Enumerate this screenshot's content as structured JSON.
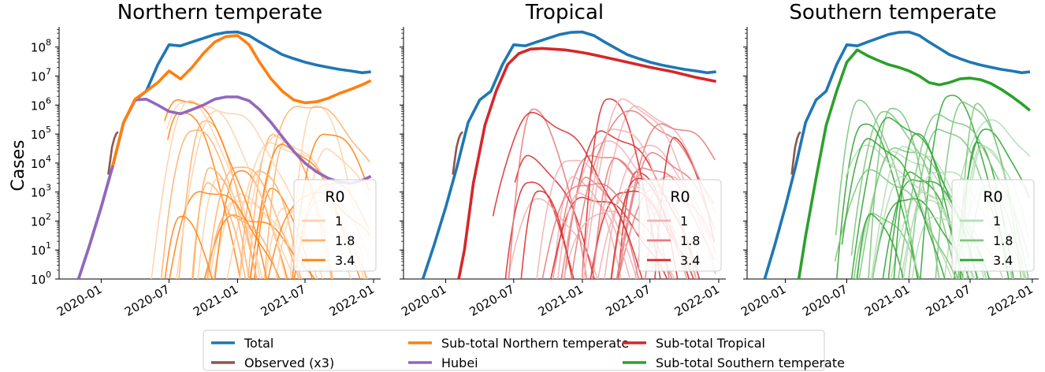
{
  "figure": {
    "ylabel": "Cases",
    "xticks": [
      "2020-01",
      "2020-07",
      "2021-01",
      "2021-07",
      "2022-01"
    ],
    "yticks": [
      {
        "value": 0,
        "mantissa": "10",
        "exp": "0"
      },
      {
        "value": 1,
        "mantissa": "10",
        "exp": "1"
      },
      {
        "value": 2,
        "mantissa": "10",
        "exp": "2"
      },
      {
        "value": 3,
        "mantissa": "10",
        "exp": "3"
      },
      {
        "value": 4,
        "mantissa": "10",
        "exp": "4"
      },
      {
        "value": 5,
        "mantissa": "10",
        "exp": "5"
      },
      {
        "value": 6,
        "mantissa": "10",
        "exp": "6"
      },
      {
        "value": 7,
        "mantissa": "10",
        "exp": "7"
      },
      {
        "value": 8,
        "mantissa": "10",
        "exp": "8"
      }
    ],
    "r0_legend_title": "R0",
    "r0_values": [
      "1",
      "1.8",
      "3.4"
    ]
  },
  "colors": {
    "total": "#1f77b4",
    "observed": "#8c564b",
    "hubei": "#9467bd",
    "northern": "#ff7f0e",
    "tropical": "#d62728",
    "southern": "#2ca02c"
  },
  "legend": [
    {
      "label": "Total",
      "color": "#1f77b4"
    },
    {
      "label": "Observed (x3)",
      "color": "#8c564b"
    },
    {
      "label": "Sub-total Northern temperate",
      "color": "#ff7f0e"
    },
    {
      "label": "Hubei",
      "color": "#9467bd"
    },
    {
      "label": "Sub-total Tropical",
      "color": "#d62728"
    },
    {
      "label": "Sub-total Southern temperate",
      "color": "#2ca02c"
    }
  ],
  "chart_data": [
    {
      "type": "line",
      "title": "Northern temperate",
      "ylabel": "Cases",
      "yscale": "log",
      "ylim": [
        1,
        500000000
      ],
      "xlim": [
        "2019-09-10",
        "2022-01-20"
      ],
      "series": [
        {
          "name": "Total",
          "x": [
            "2019-11-01",
            "2019-12-01",
            "2020-01-01",
            "2020-02-01",
            "2020-03-01",
            "2020-04-01",
            "2020-05-01",
            "2020-06-01",
            "2020-07-01",
            "2020-08-01",
            "2020-09-01",
            "2020-10-01",
            "2020-11-01",
            "2020-12-01",
            "2021-01-01",
            "2021-02-01",
            "2021-03-01",
            "2021-04-01",
            "2021-05-01",
            "2021-06-01",
            "2021-07-01",
            "2021-08-01",
            "2021-09-01",
            "2021-10-01",
            "2021-11-01",
            "2021-12-01",
            "2021-12-25"
          ],
          "y": [
            1,
            15,
            300,
            8000,
            250000,
            1500000,
            3000000,
            25000000,
            120000000,
            110000000,
            150000000,
            200000000,
            270000000,
            320000000,
            330000000,
            250000000,
            150000000,
            90000000,
            55000000,
            40000000,
            30000000,
            24000000,
            20000000,
            17000000,
            15000000,
            13000000,
            14000000
          ]
        },
        {
          "name": "Observed (x3)",
          "x": [
            "2020-01-20",
            "2020-01-25",
            "2020-01-30",
            "2020-02-05",
            "2020-02-10",
            "2020-02-15"
          ],
          "y": [
            4000,
            12000,
            35000,
            70000,
            100000,
            120000
          ]
        },
        {
          "name": "Hubei",
          "x": [
            "2019-11-01",
            "2019-12-01",
            "2020-01-01",
            "2020-02-01",
            "2020-03-01",
            "2020-04-01",
            "2020-05-01",
            "2020-06-01",
            "2020-07-01",
            "2020-08-01",
            "2020-09-01",
            "2020-10-01",
            "2020-11-01",
            "2020-12-01",
            "2021-01-01",
            "2021-02-01",
            "2021-03-01",
            "2021-04-01",
            "2021-05-01",
            "2021-06-01",
            "2021-07-01",
            "2021-08-01",
            "2021-09-01",
            "2021-10-01",
            "2021-11-01",
            "2021-12-01",
            "2021-12-25"
          ],
          "y": [
            1,
            15,
            300,
            8000,
            250000,
            1500000,
            1600000,
            1000000,
            600000,
            500000,
            700000,
            1000000,
            1600000,
            1900000,
            1900000,
            1400000,
            700000,
            250000,
            80000,
            25000,
            10000,
            5000,
            3000,
            2200,
            2000,
            2500,
            3500
          ]
        },
        {
          "name": "Sub-total Northern temperate",
          "x": [
            "2020-02-01",
            "2020-03-01",
            "2020-04-01",
            "2020-05-01",
            "2020-06-01",
            "2020-07-01",
            "2020-08-01",
            "2020-09-01",
            "2020-10-01",
            "2020-11-01",
            "2020-12-01",
            "2021-01-01",
            "2021-02-01",
            "2021-03-01",
            "2021-04-01",
            "2021-05-01",
            "2021-06-01",
            "2021-07-01",
            "2021-08-01",
            "2021-09-01",
            "2021-10-01",
            "2021-11-01",
            "2021-12-01",
            "2021-12-25"
          ],
          "y": [
            8000,
            250000,
            1600000,
            3000000,
            6000000,
            15000000,
            8000000,
            20000000,
            60000000,
            150000000,
            230000000,
            250000000,
            120000000,
            30000000,
            8000000,
            3000000,
            1500000,
            1200000,
            1300000,
            1700000,
            2500000,
            3500000,
            5000000,
            7000000
          ]
        }
      ]
    },
    {
      "type": "line",
      "title": "Tropical",
      "yscale": "log",
      "ylim": [
        1,
        500000000
      ],
      "xlim": [
        "2019-09-10",
        "2022-01-20"
      ],
      "series": [
        {
          "name": "Total",
          "x": [
            "2019-11-01",
            "2019-12-01",
            "2020-01-01",
            "2020-02-01",
            "2020-03-01",
            "2020-04-01",
            "2020-05-01",
            "2020-06-01",
            "2020-07-01",
            "2020-08-01",
            "2020-09-01",
            "2020-10-01",
            "2020-11-01",
            "2020-12-01",
            "2021-01-01",
            "2021-02-01",
            "2021-03-01",
            "2021-04-01",
            "2021-05-01",
            "2021-06-01",
            "2021-07-01",
            "2021-08-01",
            "2021-09-01",
            "2021-10-01",
            "2021-11-01",
            "2021-12-01",
            "2021-12-25"
          ],
          "y": [
            1,
            15,
            300,
            8000,
            250000,
            1500000,
            3000000,
            25000000,
            120000000,
            110000000,
            150000000,
            200000000,
            270000000,
            320000000,
            330000000,
            250000000,
            150000000,
            90000000,
            55000000,
            40000000,
            30000000,
            24000000,
            20000000,
            17000000,
            15000000,
            13000000,
            14000000
          ]
        },
        {
          "name": "Observed (x3)",
          "x": [
            "2020-01-20",
            "2020-01-25",
            "2020-01-30",
            "2020-02-05",
            "2020-02-10",
            "2020-02-15"
          ],
          "y": [
            4000,
            12000,
            35000,
            70000,
            100000,
            120000
          ]
        },
        {
          "name": "Sub-total Tropical",
          "x": [
            "2020-02-05",
            "2020-02-20",
            "2020-03-15",
            "2020-04-15",
            "2020-05-15",
            "2020-06-15",
            "2020-07-15",
            "2020-08-15",
            "2020-09-15",
            "2020-10-15",
            "2020-11-15",
            "2020-12-15",
            "2021-01-15",
            "2021-03-01",
            "2021-05-01",
            "2021-07-01",
            "2021-09-01",
            "2021-11-01",
            "2021-12-25"
          ],
          "y": [
            1,
            10,
            2000,
            200000,
            3000000,
            25000000,
            60000000,
            85000000,
            90000000,
            85000000,
            80000000,
            70000000,
            60000000,
            45000000,
            30000000,
            20000000,
            14000000,
            9000000,
            6500000
          ]
        }
      ]
    },
    {
      "type": "line",
      "title": "Southern temperate",
      "yscale": "log",
      "ylim": [
        1,
        500000000
      ],
      "xlim": [
        "2019-09-10",
        "2022-01-20"
      ],
      "series": [
        {
          "name": "Total",
          "x": [
            "2019-11-01",
            "2019-12-01",
            "2020-01-01",
            "2020-02-01",
            "2020-03-01",
            "2020-04-01",
            "2020-05-01",
            "2020-06-01",
            "2020-07-01",
            "2020-08-01",
            "2020-09-01",
            "2020-10-01",
            "2020-11-01",
            "2020-12-01",
            "2021-01-01",
            "2021-02-01",
            "2021-03-01",
            "2021-04-01",
            "2021-05-01",
            "2021-06-01",
            "2021-07-01",
            "2021-08-01",
            "2021-09-01",
            "2021-10-01",
            "2021-11-01",
            "2021-12-01",
            "2021-12-25"
          ],
          "y": [
            1,
            15,
            300,
            8000,
            250000,
            1500000,
            3000000,
            25000000,
            120000000,
            110000000,
            150000000,
            200000000,
            270000000,
            320000000,
            330000000,
            250000000,
            150000000,
            90000000,
            55000000,
            40000000,
            30000000,
            24000000,
            20000000,
            17000000,
            15000000,
            13000000,
            14000000
          ]
        },
        {
          "name": "Observed (x3)",
          "x": [
            "2020-01-20",
            "2020-01-25",
            "2020-01-30",
            "2020-02-05",
            "2020-02-10",
            "2020-02-15"
          ],
          "y": [
            4000,
            12000,
            35000,
            70000,
            100000,
            120000
          ]
        },
        {
          "name": "Sub-total Southern temperate",
          "x": [
            "2020-02-10",
            "2020-03-01",
            "2020-04-01",
            "2020-05-01",
            "2020-06-01",
            "2020-07-01",
            "2020-08-01",
            "2020-09-01",
            "2020-10-01",
            "2020-11-01",
            "2020-12-01",
            "2021-01-01",
            "2021-02-01",
            "2021-03-01",
            "2021-04-01",
            "2021-05-01",
            "2021-06-01",
            "2021-07-01",
            "2021-08-01",
            "2021-09-01",
            "2021-10-01",
            "2021-11-01",
            "2021-12-01",
            "2021-12-25"
          ],
          "y": [
            1,
            30,
            3000,
            200000,
            3000000,
            30000000,
            80000000,
            50000000,
            35000000,
            25000000,
            20000000,
            15000000,
            10000000,
            6000000,
            5000000,
            6000000,
            8000000,
            8500000,
            7500000,
            5500000,
            3500000,
            2000000,
            1100000,
            650000
          ]
        }
      ]
    }
  ]
}
